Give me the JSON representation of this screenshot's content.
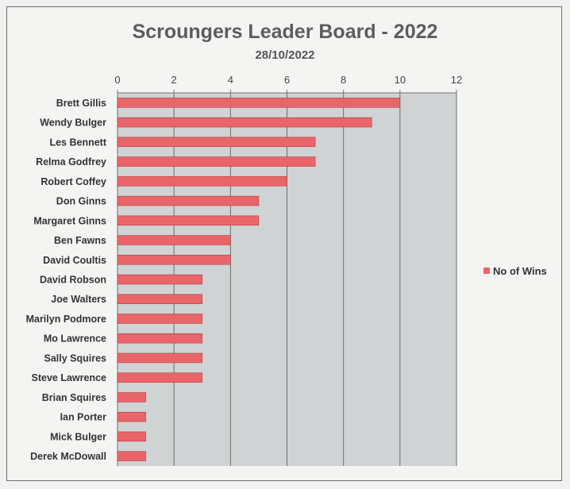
{
  "chart_data": {
    "type": "bar",
    "orientation": "horizontal",
    "title": "Scroungers Leader Board - 2022",
    "subtitle": "28/10/2022",
    "categories": [
      "Brett Gillis",
      "Wendy Bulger",
      "Les Bennett",
      "Relma Godfrey",
      "Robert Coffey",
      "Don Ginns",
      "Margaret Ginns",
      "Ben Fawns",
      "David Coultis",
      "David Robson",
      "Joe Walters",
      "Marilyn Podmore",
      "Mo Lawrence",
      "Sally Squires",
      "Steve Lawrence",
      "Brian Squires",
      "Ian Porter",
      "Mick Bulger",
      "Derek McDowall"
    ],
    "series": [
      {
        "name": "No of Wins",
        "values": [
          10,
          9,
          7,
          7,
          6,
          5,
          5,
          4,
          4,
          3,
          3,
          3,
          3,
          3,
          3,
          1,
          1,
          1,
          1
        ]
      }
    ],
    "xlim": [
      0,
      12
    ],
    "xticks": [
      0,
      2,
      4,
      6,
      8,
      10,
      12
    ],
    "x_axis_position": "top",
    "grid": true,
    "legend_position": "right",
    "colors": {
      "bar": "#e8666a",
      "bar_border": "#b93a3f",
      "plot_bg": "#cfd3d3",
      "grid": "#6e6e6e"
    }
  }
}
